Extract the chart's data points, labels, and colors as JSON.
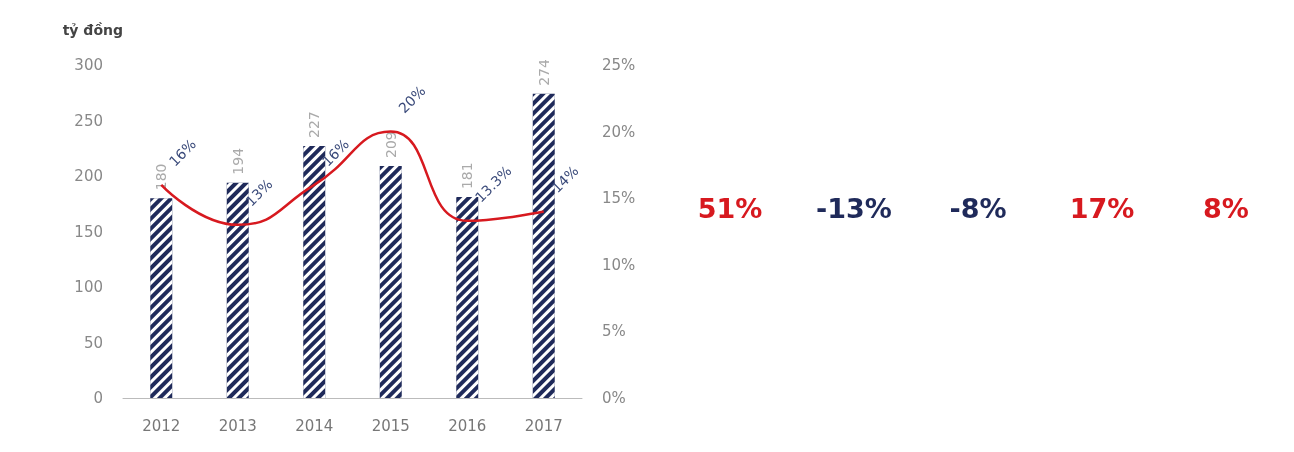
{
  "chart_data": {
    "type": "bar",
    "ylabel": "tỷ đồng",
    "categories": [
      "2012",
      "2013",
      "2014",
      "2015",
      "2016",
      "2017"
    ],
    "series": [
      {
        "color": "#1f2a5a",
        "values": [
          180,
          194,
          227,
          209,
          181,
          274
        ],
        "value_labels": [
          "180",
          "194",
          "227",
          "209",
          "181",
          "274"
        ]
      },
      {
        "type": "line",
        "axis": "y2",
        "color": "#d7191f",
        "values": [
          16,
          13,
          16,
          20,
          13.3,
          14
        ],
        "value_labels": [
          "16%",
          "13%",
          "16%",
          "20%",
          "13.3%",
          "14%"
        ]
      }
    ],
    "ylim": [
      0,
      300
    ],
    "yticks": [
      0,
      50,
      100,
      150,
      200,
      250,
      300
    ],
    "y2lim": [
      0,
      25
    ],
    "y2ticks": [
      {
        "value": 0,
        "label": "0%"
      },
      {
        "value": 5,
        "label": "5%"
      },
      {
        "value": 10,
        "label": "10%"
      },
      {
        "value": 15,
        "label": "15%"
      },
      {
        "value": 20,
        "label": "20%"
      },
      {
        "value": 25,
        "label": "25%"
      }
    ],
    "grid": false,
    "annotations": [
      "51%",
      "-13%",
      "-8%",
      "17%",
      "8%"
    ]
  }
}
